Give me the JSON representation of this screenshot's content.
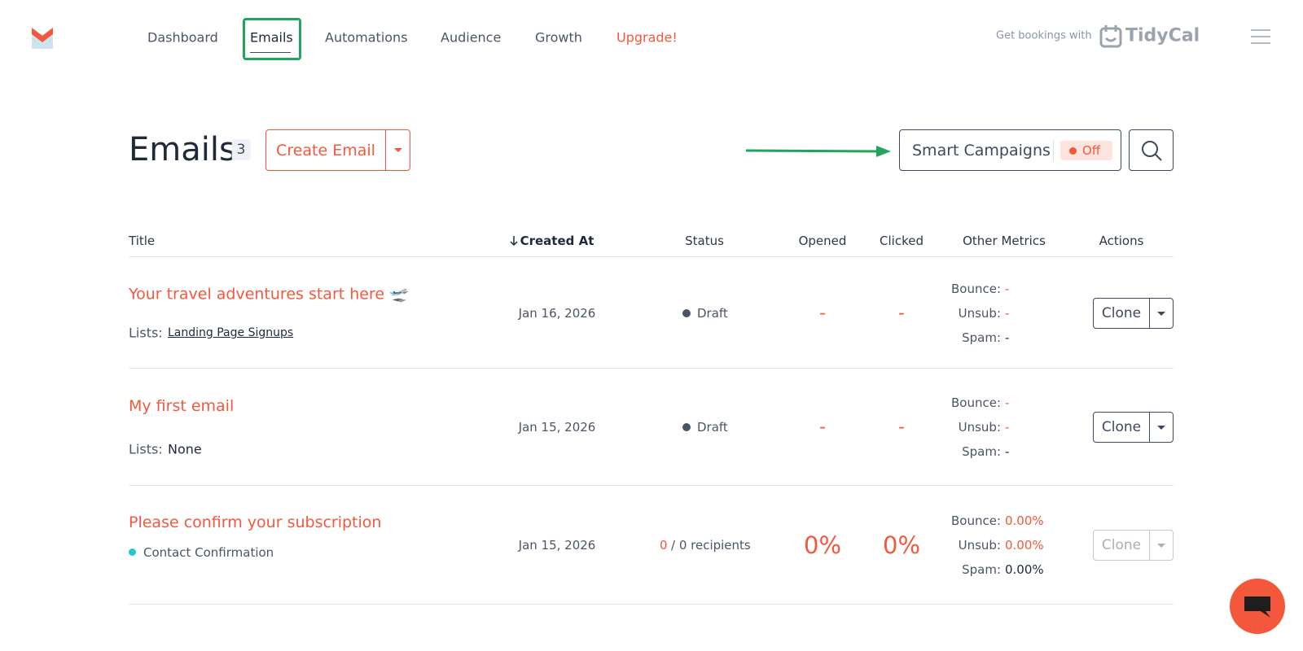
{
  "nav": {
    "items": [
      "Dashboard",
      "Emails",
      "Automations",
      "Audience",
      "Growth",
      "Upgrade!"
    ],
    "active": "Emails",
    "promo": "Get bookings with",
    "promo_brand": "TidyCal"
  },
  "header": {
    "title": "Emails",
    "count": 3,
    "create_button": "Create Email",
    "smart_campaigns": "Smart Campaigns",
    "smart_status": "Off"
  },
  "table": {
    "columns": [
      "Title",
      "Created At",
      "Status",
      "Opened",
      "Clicked",
      "Other Metrics",
      "Actions"
    ],
    "rows": [
      {
        "title": "Your travel adventures start here 🛫",
        "lists_label": "Lists:",
        "lists": "Landing Page Signups",
        "created": "Jan 16, 2026",
        "status": "Draft",
        "opened": "-",
        "clicked": "-",
        "metrics": [
          {
            "label": "Bounce:",
            "value": "-"
          },
          {
            "label": "Unsub:",
            "value": "-"
          },
          {
            "label": "Spam:",
            "value": "-"
          }
        ],
        "action": "Clone"
      },
      {
        "title": "My first email",
        "lists_label": "Lists:",
        "lists": "None",
        "created": "Jan 15, 2026",
        "status": "Draft",
        "opened": "-",
        "clicked": "-",
        "metrics": [
          {
            "label": "Bounce:",
            "value": "-"
          },
          {
            "label": "Unsub:",
            "value": "-"
          },
          {
            "label": "Spam:",
            "value": "-"
          }
        ],
        "action": "Clone"
      },
      {
        "title": "Please confirm your subscription",
        "lists": "Contact Confirmation",
        "created": "Jan 15, 2026",
        "status_count": "0",
        "status": "/ 0 recipients",
        "opened": "0%",
        "clicked": "0%",
        "metrics": [
          {
            "label": "Bounce:",
            "value": "0.00%"
          },
          {
            "label": "Unsub:",
            "value": "0.00%"
          },
          {
            "label": "Spam:",
            "value": "0.00%"
          }
        ],
        "action": "Clone"
      }
    ]
  }
}
